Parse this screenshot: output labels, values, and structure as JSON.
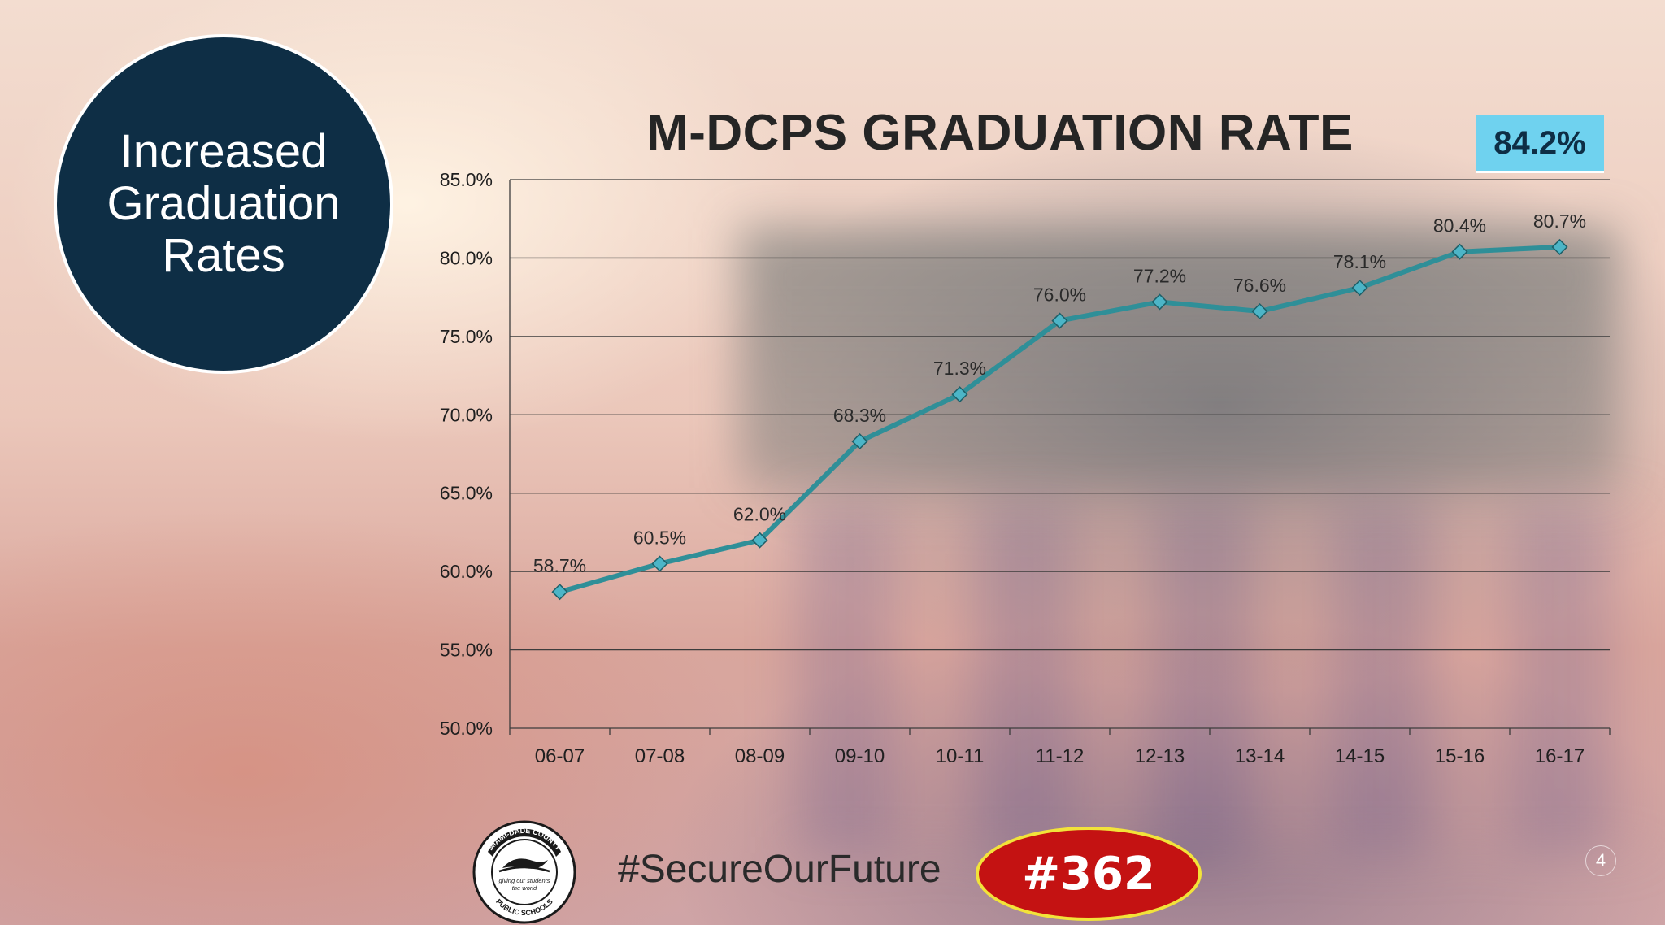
{
  "callout": {
    "text_lines": [
      "Increased",
      "Graduation",
      "Rates"
    ]
  },
  "badge": {
    "value": "84.2%"
  },
  "footer": {
    "hashtag": "#SecureOurFuture",
    "oval_text": "#362",
    "page_number": "4"
  },
  "logo": {
    "ring_top": "MIAMI-DADE COUNTY",
    "ring_bottom": "PUBLIC SCHOOLS",
    "center_line1": "giving our students",
    "center_line2": "the world"
  },
  "colors": {
    "line": "#2f8f98",
    "marker": "#4cb5c7",
    "circle": "#0e2e45",
    "badge": "#6fd2ef",
    "oval": "#c41212",
    "oval_border": "#f2e33a"
  },
  "chart_data": {
    "type": "line",
    "title": "M-DCPS GRADUATION RATE",
    "categories": [
      "06-07",
      "07-08",
      "08-09",
      "09-10",
      "10-11",
      "11-12",
      "12-13",
      "13-14",
      "14-15",
      "15-16",
      "16-17"
    ],
    "values": [
      58.7,
      60.5,
      62.0,
      68.3,
      71.3,
      76.0,
      77.2,
      76.6,
      78.1,
      80.4,
      80.7
    ],
    "data_labels": [
      "58.7%",
      "60.5%",
      "62.0%",
      "68.3%",
      "71.3%",
      "76.0%",
      "77.2%",
      "76.6%",
      "78.1%",
      "80.4%",
      "80.7%"
    ],
    "ylim": [
      50,
      85
    ],
    "y_ticks": [
      50,
      55,
      60,
      65,
      70,
      75,
      80,
      85
    ],
    "y_tick_labels": [
      "50.0%",
      "55.0%",
      "60.0%",
      "65.0%",
      "70.0%",
      "75.0%",
      "80.0%",
      "85.0%"
    ],
    "grid": true,
    "xlabel": "",
    "ylabel": ""
  }
}
